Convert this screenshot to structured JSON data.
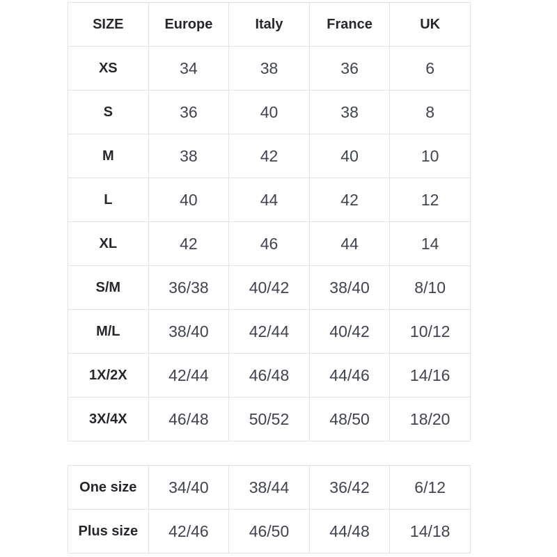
{
  "chart_data": {
    "type": "table",
    "title": "",
    "tables": [
      {
        "name": "main-size-table",
        "has_header": true,
        "columns": [
          "SIZE",
          "Europe",
          "Italy",
          "France",
          "UK"
        ],
        "rows": [
          [
            "XS",
            "34",
            "38",
            "36",
            "6"
          ],
          [
            "S",
            "36",
            "40",
            "38",
            "8"
          ],
          [
            "M",
            "38",
            "42",
            "40",
            "10"
          ],
          [
            "L",
            "40",
            "44",
            "42",
            "12"
          ],
          [
            "XL",
            "42",
            "46",
            "44",
            "14"
          ],
          [
            "S/M",
            "36/38",
            "40/42",
            "38/40",
            "8/10"
          ],
          [
            "M/L",
            "38/40",
            "42/44",
            "40/42",
            "10/12"
          ],
          [
            "1X/2X",
            "42/44",
            "46/48",
            "44/46",
            "14/16"
          ],
          [
            "3X/4X",
            "46/48",
            "50/52",
            "48/50",
            "18/20"
          ]
        ]
      },
      {
        "name": "special-size-table",
        "has_header": false,
        "columns": [],
        "rows": [
          [
            "One size",
            "34/40",
            "38/44",
            "36/42",
            "6/12"
          ],
          [
            "Plus size",
            "42/46",
            "46/50",
            "44/48",
            "14/18"
          ]
        ]
      }
    ],
    "layout": {
      "grid": true,
      "column_count": 5,
      "first_column_role": "size-label"
    }
  },
  "colors": {
    "background": "#ffffff",
    "border": "#e1e2e4",
    "label_text": "#26262c",
    "value_text": "#3f4450"
  }
}
